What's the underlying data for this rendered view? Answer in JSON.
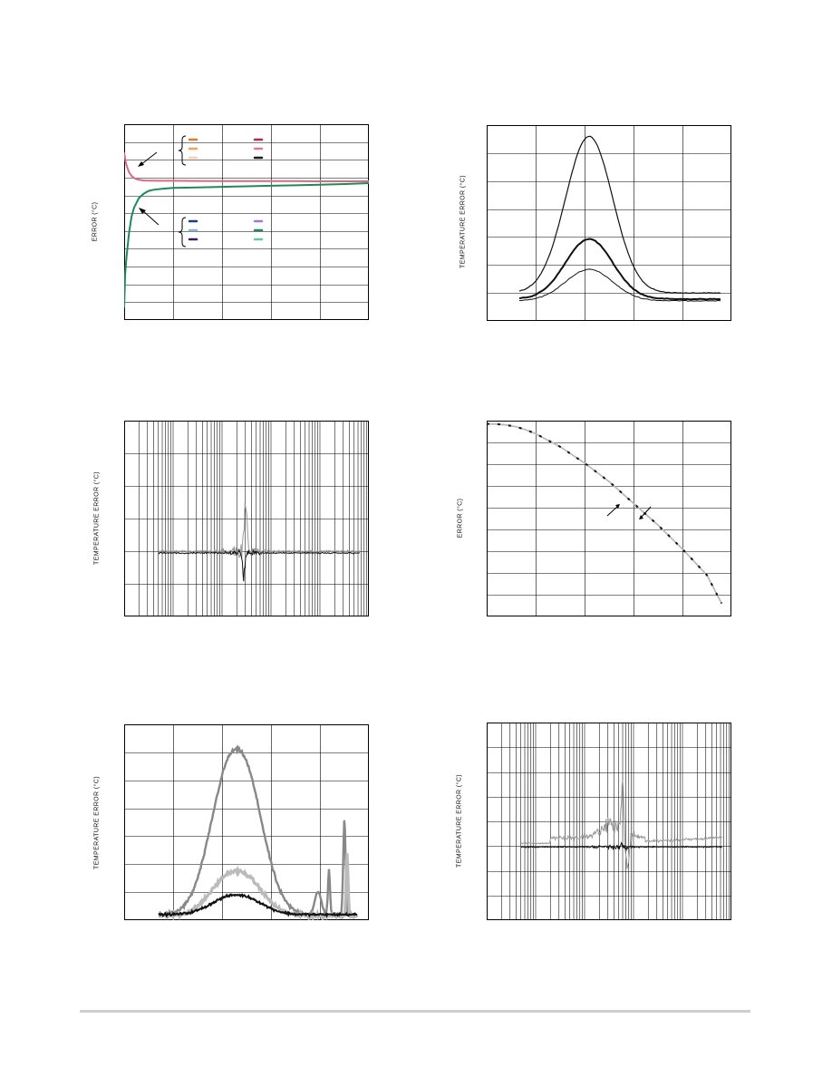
{
  "page": {
    "footer_color": "#cfcfcf"
  },
  "chart_data": [
    {
      "id": "chart1",
      "type": "line",
      "ylabel": "ERROR (°C)",
      "grid": true,
      "grid_cols": 5,
      "grid_rows": 11,
      "xlim": [
        0,
        50
      ],
      "ylim": [
        0,
        11
      ],
      "series": [
        {
          "color": "#d96a7e",
          "x": [
            0,
            0.3,
            0.6,
            1,
            1.5,
            2,
            2.5,
            3,
            4,
            5,
            7,
            10,
            15,
            20,
            25,
            30,
            35,
            40,
            45,
            50
          ],
          "y": [
            9.4,
            8.9,
            8.6,
            8.3,
            8.1,
            7.98,
            7.92,
            7.88,
            7.84,
            7.83,
            7.82,
            7.82,
            7.81,
            7.8,
            7.8,
            7.8,
            7.8,
            7.79,
            7.79,
            7.79
          ]
        },
        {
          "color": "#1e8a5a",
          "x": [
            0,
            0.2,
            0.5,
            1,
            1.5,
            2,
            3,
            4,
            5,
            6,
            8,
            10,
            15,
            20,
            25,
            30,
            35,
            40,
            45,
            50
          ],
          "y": [
            0.7,
            2.6,
            3.6,
            4.9,
            5.8,
            6.3,
            6.85,
            7.1,
            7.25,
            7.32,
            7.38,
            7.42,
            7.45,
            7.48,
            7.51,
            7.54,
            7.57,
            7.6,
            7.64,
            7.69
          ]
        }
      ],
      "legend_top_colors": [
        "#e07b2c",
        "#f0a35c",
        "#f6d2b4",
        "#c0234e",
        "#e07a9a",
        "#1a1a1a"
      ],
      "legend_bottom_colors": [
        "#1e3f7a",
        "#8fb3d8",
        "#3a1a5e",
        "#9b7fc4",
        "#1e8a5a",
        "#63c8a0"
      ]
    },
    {
      "id": "chart2",
      "type": "line",
      "ylabel": "TEMPERATURE ERROR (°C)",
      "grid": true,
      "grid_cols": 5,
      "grid_rows": 7,
      "xlim": [
        0,
        50
      ],
      "ylim": [
        0,
        7
      ],
      "series": [
        {
          "color": "#111111",
          "width": 1.2,
          "amp": 5.6,
          "base": 1.0,
          "noise": 0
        },
        {
          "color": "#111111",
          "width": 2.0,
          "amp": 2.15,
          "base": 0.78,
          "noise": 0
        },
        {
          "color": "#111111",
          "width": 1.0,
          "amp": 1.12,
          "base": 0.72,
          "noise": 0
        }
      ]
    },
    {
      "id": "chart3",
      "type": "line",
      "ylabel": "TEMPERATURE ERROR (°C)",
      "grid": true,
      "xscale": "log",
      "decades": 5,
      "grid_rows": 6,
      "xlim": [
        1,
        100000
      ],
      "ylim": [
        0,
        6
      ],
      "series": [
        {
          "color": "#999999"
        },
        {
          "color": "#111111"
        }
      ]
    },
    {
      "id": "chart4",
      "type": "line",
      "ylabel": "ERROR (°C)",
      "grid": true,
      "grid_cols": 5,
      "grid_rows": 9,
      "xlim": [
        0,
        50
      ],
      "ylim": [
        0,
        9
      ],
      "series": [
        {
          "color": "#bbbbbb",
          "dash": "0",
          "x": [
            0,
            2,
            4,
            6,
            8,
            10,
            15,
            20,
            25,
            30,
            35,
            40,
            45,
            48
          ],
          "y": [
            8.85,
            8.84,
            8.8,
            8.72,
            8.58,
            8.4,
            7.8,
            7.05,
            6.2,
            5.2,
            4.2,
            3.1,
            1.9,
            0.6
          ]
        },
        {
          "color": "#111111",
          "dash": "3,9",
          "x": [
            0,
            2,
            4,
            6,
            8,
            10,
            15,
            20,
            25,
            30,
            35,
            40,
            45,
            48
          ],
          "y": [
            8.85,
            8.84,
            8.8,
            8.72,
            8.58,
            8.4,
            7.8,
            7.05,
            6.2,
            5.2,
            4.2,
            3.1,
            1.9,
            0.6
          ]
        }
      ]
    },
    {
      "id": "chart5",
      "type": "line",
      "ylabel": "TEMPERATURE ERROR (°C)",
      "grid": true,
      "grid_cols": 5,
      "grid_rows": 7,
      "xlim": [
        0,
        50
      ],
      "ylim": [
        0,
        7
      ],
      "series": [
        {
          "color": "#888888",
          "width": 2.4,
          "amp": 5.9,
          "base": 0.2
        },
        {
          "color": "#bbbbbb",
          "width": 3.2,
          "amp": 1.6,
          "base": 0.15
        },
        {
          "color": "#111111",
          "width": 2.0,
          "amp": 0.7,
          "base": 0.2
        }
      ]
    },
    {
      "id": "chart6",
      "type": "line",
      "ylabel": "TEMPERATURE ERROR (°C)",
      "grid": true,
      "xscale": "log",
      "decades": 5,
      "grid_rows": 8,
      "xlim": [
        1,
        100000
      ],
      "ylim": [
        0,
        8
      ],
      "series": [
        {
          "color": "#999999"
        },
        {
          "color": "#111111"
        }
      ]
    }
  ]
}
